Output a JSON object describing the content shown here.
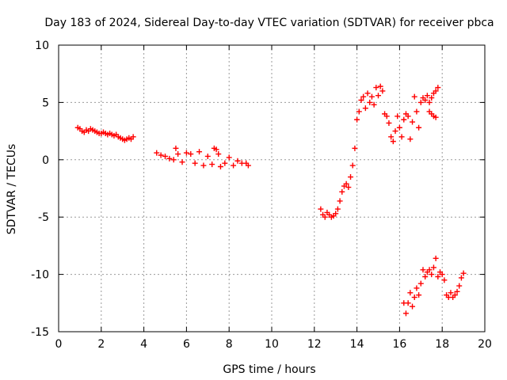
{
  "chart_data": {
    "type": "scatter",
    "title": "Day 183 of 2024, Sidereal Day-to-day VTEC variation (SDTVAR) for receiver pbca",
    "xlabel": "GPS time / hours",
    "ylabel": "SDTVAR / TECUs",
    "xlim": [
      0,
      20
    ],
    "ylim": [
      -15,
      10
    ],
    "x_ticks": [
      0,
      2,
      4,
      6,
      8,
      10,
      12,
      14,
      16,
      18,
      20
    ],
    "y_ticks": [
      -15,
      -10,
      -5,
      0,
      5,
      10
    ],
    "grid": true,
    "marker": "+",
    "color": "#ff0000",
    "series": [
      {
        "name": "segment-1",
        "x": [
          0.9,
          1.0,
          1.1,
          1.2,
          1.3,
          1.4,
          1.5,
          1.6,
          1.7,
          1.8,
          1.9,
          2.0,
          2.1,
          2.2,
          2.3,
          2.4,
          2.5,
          2.6,
          2.7,
          2.8,
          2.9,
          3.0,
          3.1,
          3.2,
          3.3,
          3.4,
          3.5
        ],
        "y": [
          2.8,
          2.7,
          2.5,
          2.4,
          2.6,
          2.5,
          2.7,
          2.6,
          2.5,
          2.4,
          2.3,
          2.3,
          2.4,
          2.3,
          2.2,
          2.3,
          2.2,
          2.1,
          2.2,
          2.0,
          1.9,
          1.8,
          1.7,
          1.8,
          1.9,
          1.8,
          2.0
        ]
      },
      {
        "name": "segment-2",
        "x": [
          4.6,
          4.8,
          5.0,
          5.2,
          5.4,
          5.5,
          5.6,
          5.8,
          6.0,
          6.2,
          6.4,
          6.6,
          6.8,
          7.0,
          7.2,
          7.3,
          7.4,
          7.5,
          7.6,
          7.8,
          8.0,
          8.2,
          8.4,
          8.6,
          8.8,
          8.9
        ],
        "y": [
          0.6,
          0.4,
          0.3,
          0.1,
          0.0,
          1.0,
          0.5,
          -0.2,
          0.6,
          0.5,
          -0.3,
          0.7,
          -0.5,
          0.3,
          -0.4,
          1.0,
          0.9,
          0.5,
          -0.6,
          -0.3,
          0.2,
          -0.5,
          -0.1,
          -0.3,
          -0.3,
          -0.5
        ]
      },
      {
        "name": "segment-3",
        "x": [
          12.3,
          12.4,
          12.5,
          12.6,
          12.7,
          12.8,
          12.9,
          13.0,
          13.1,
          13.2,
          13.3,
          13.4,
          13.5,
          13.6,
          13.7,
          13.8,
          13.9,
          14.0,
          14.1,
          14.2,
          14.3,
          14.4,
          14.5,
          14.6,
          14.7,
          14.8,
          14.9,
          15.0,
          15.1,
          15.2,
          15.3,
          15.4,
          15.5,
          15.6,
          15.7,
          15.8,
          15.9,
          16.0,
          16.1,
          16.2,
          16.3,
          16.4,
          16.5,
          16.6,
          16.7,
          16.8,
          16.9,
          17.0,
          17.1,
          17.2,
          17.3,
          17.4,
          17.5,
          17.6,
          17.7,
          17.8
        ],
        "y": [
          -4.3,
          -4.8,
          -5.0,
          -4.6,
          -4.8,
          -5.0,
          -4.9,
          -4.7,
          -4.3,
          -3.6,
          -2.8,
          -2.3,
          -2.1,
          -2.4,
          -1.5,
          -0.5,
          1.0,
          3.5,
          4.2,
          5.2,
          5.5,
          4.5,
          5.8,
          5.0,
          5.5,
          4.8,
          6.3,
          5.6,
          6.4,
          6.0,
          4.0,
          3.8,
          3.2,
          2.0,
          1.6,
          2.5,
          3.8,
          2.8,
          2.0,
          3.5,
          4.0,
          3.8,
          1.8,
          3.3,
          5.5,
          4.2,
          2.8,
          5.0,
          5.4,
          5.2,
          5.6,
          5.0,
          5.4,
          5.8,
          6.0,
          6.3
        ]
      },
      {
        "name": "segment-3-branch",
        "x": [
          17.4,
          17.5,
          17.6,
          17.7
        ],
        "y": [
          4.2,
          4.0,
          3.8,
          3.7
        ]
      },
      {
        "name": "segment-4",
        "x": [
          16.2,
          16.3,
          16.4,
          16.5,
          16.6,
          16.7,
          16.8,
          16.9,
          17.0,
          17.1,
          17.2,
          17.3,
          17.4,
          17.5,
          17.6,
          17.7,
          17.8,
          17.9,
          18.0,
          18.1,
          18.2,
          18.3,
          18.4,
          18.5,
          18.6,
          18.7,
          18.8,
          18.9,
          19.0
        ],
        "y": [
          -12.5,
          -13.4,
          -12.5,
          -11.6,
          -12.8,
          -12.0,
          -11.2,
          -11.8,
          -10.8,
          -9.6,
          -10.2,
          -9.8,
          -9.6,
          -10.0,
          -9.4,
          -8.6,
          -10.2,
          -9.8,
          -10.0,
          -10.5,
          -11.8,
          -12.0,
          -11.6,
          -12.0,
          -11.8,
          -11.5,
          -11.0,
          -10.3,
          -9.9
        ]
      }
    ]
  }
}
